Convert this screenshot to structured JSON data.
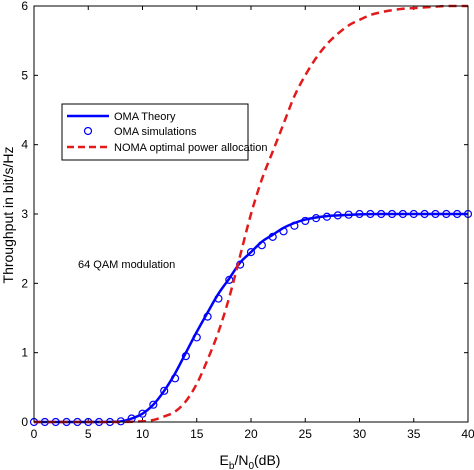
{
  "chart_data": {
    "type": "line",
    "title": "",
    "xlabel": "E",
    "xlabel_sub1": "b",
    "xlabel_mid": "/N",
    "xlabel_sub2": "0",
    "xlabel_tail": "(dB)",
    "ylabel": "Throughput in bit/s/Hz",
    "xlim": [
      0,
      40
    ],
    "ylim": [
      0,
      6
    ],
    "xticks": [
      0,
      5,
      10,
      15,
      20,
      25,
      30,
      35,
      40
    ],
    "yticks": [
      0,
      1,
      2,
      3,
      4,
      5,
      6
    ],
    "legend_position": "upper-left",
    "annotation": "64 QAM modulation",
    "series": [
      {
        "name": "OMA Theory",
        "style": "solid",
        "color": "#0000ff",
        "x": [
          0,
          2,
          4,
          6,
          8,
          9,
          10,
          11,
          12,
          13,
          14,
          15,
          16,
          17,
          18,
          19,
          20,
          21,
          22,
          23,
          24,
          25,
          26,
          27,
          28,
          30,
          32,
          35,
          40
        ],
        "y": [
          0,
          0,
          0,
          0,
          0.01,
          0.05,
          0.12,
          0.25,
          0.45,
          0.7,
          1.0,
          1.3,
          1.58,
          1.85,
          2.07,
          2.3,
          2.45,
          2.6,
          2.7,
          2.8,
          2.87,
          2.92,
          2.95,
          2.97,
          2.98,
          2.995,
          3.0,
          3.0,
          3.0
        ]
      },
      {
        "name": "OMA simulations",
        "style": "markers",
        "color": "#0000ff",
        "x": [
          0,
          1,
          2,
          3,
          4,
          5,
          6,
          7,
          8,
          9,
          10,
          11,
          12,
          13,
          14,
          15,
          16,
          17,
          18,
          19,
          20,
          21,
          22,
          23,
          24,
          25,
          26,
          27,
          28,
          29,
          30,
          31,
          32,
          33,
          34,
          35,
          36,
          37,
          38,
          39,
          40
        ],
        "y": [
          0,
          0,
          0,
          0,
          0,
          0,
          0,
          0,
          0.01,
          0.05,
          0.12,
          0.25,
          0.45,
          0.63,
          0.95,
          1.22,
          1.52,
          1.78,
          2.05,
          2.27,
          2.45,
          2.55,
          2.67,
          2.75,
          2.83,
          2.9,
          2.94,
          2.96,
          2.98,
          2.99,
          3.0,
          3.0,
          3.0,
          3.0,
          3.0,
          3.0,
          3.0,
          3.0,
          3.0,
          3.0,
          3.0
        ]
      },
      {
        "name": "NOMA optimal power allocation",
        "style": "dashed",
        "color": "#e31a1c",
        "x": [
          0,
          2,
          4,
          6,
          8,
          10,
          11,
          12,
          13,
          14,
          15,
          16,
          17,
          18,
          19,
          20,
          21,
          22,
          23,
          24,
          25,
          26,
          27,
          28,
          29,
          30,
          31,
          32,
          33,
          34,
          35,
          36,
          37,
          38,
          40
        ],
        "y": [
          0,
          0,
          0,
          0,
          0,
          0.01,
          0.03,
          0.08,
          0.15,
          0.3,
          0.55,
          0.9,
          1.3,
          1.8,
          2.4,
          3.0,
          3.5,
          3.9,
          4.3,
          4.7,
          5.0,
          5.25,
          5.45,
          5.6,
          5.72,
          5.8,
          5.87,
          5.91,
          5.94,
          5.96,
          5.97,
          5.98,
          5.99,
          6.0,
          6.0
        ]
      }
    ]
  }
}
